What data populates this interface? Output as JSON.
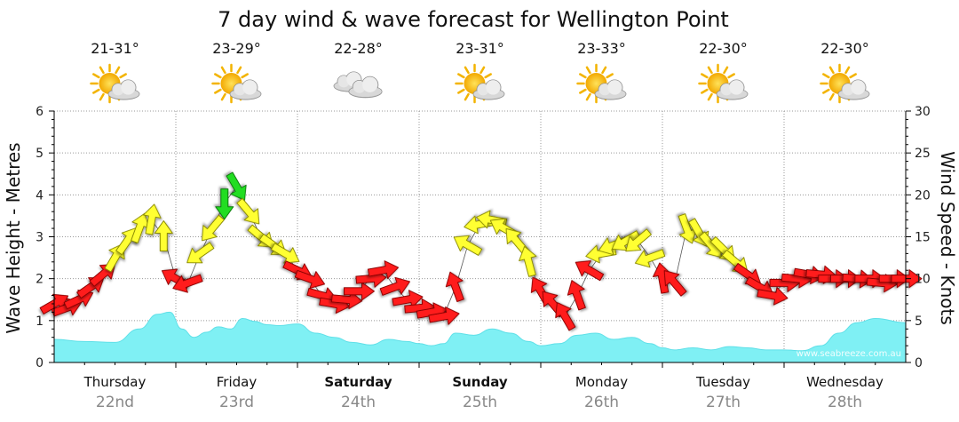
{
  "chart_data": {
    "type": "line",
    "title": "7 day wind & wave forecast for Wellington Point",
    "ylabel_left": "Wave Height - Metres",
    "ylabel_right": "Wind Speed - Knots",
    "ylim_left": [
      0,
      6
    ],
    "ylim_right": [
      0,
      30
    ],
    "yticks_left": [
      "0",
      "1",
      "2",
      "3",
      "4",
      "5",
      "6"
    ],
    "yticks_right": [
      "0",
      "5",
      "10",
      "15",
      "20",
      "25",
      "30"
    ],
    "watermark": "www.seabreeze.com.au",
    "grid": true,
    "days": [
      {
        "day": "Thursday",
        "date": "22nd",
        "temp": "21-31°",
        "weather": "partly-cloudy-icon",
        "bold": false
      },
      {
        "day": "Friday",
        "date": "23rd",
        "temp": "23-29°",
        "weather": "partly-cloudy-icon",
        "bold": false
      },
      {
        "day": "Saturday",
        "date": "24th",
        "temp": "22-28°",
        "weather": "cloudy-icon",
        "bold": true
      },
      {
        "day": "Sunday",
        "date": "25th",
        "temp": "23-31°",
        "weather": "partly-cloudy-icon",
        "bold": true
      },
      {
        "day": "Monday",
        "date": "26th",
        "temp": "23-33°",
        "weather": "partly-cloudy-icon",
        "bold": false
      },
      {
        "day": "Tuesday",
        "date": "27th",
        "temp": "22-30°",
        "weather": "partly-cloudy-icon",
        "bold": false
      },
      {
        "day": "Wednesday",
        "date": "28th",
        "temp": "22-30°",
        "weather": "partly-cloudy-icon",
        "bold": false
      }
    ],
    "wave_series": {
      "x_days": [
        0,
        0.25,
        0.5,
        0.7,
        0.85,
        0.95,
        1.05,
        1.15,
        1.25,
        1.35,
        1.45,
        1.55,
        1.65,
        1.75,
        1.85,
        2.0,
        2.15,
        2.3,
        2.45,
        2.6,
        2.75,
        2.9,
        3.0,
        3.1,
        3.2,
        3.3,
        3.45,
        3.6,
        3.75,
        3.9,
        4.0,
        4.15,
        4.3,
        4.45,
        4.6,
        4.75,
        4.9,
        5.0,
        5.1,
        5.25,
        5.4,
        5.55,
        5.7,
        5.85,
        6.0,
        6.15,
        6.3,
        6.45,
        6.6,
        6.75,
        7.0
      ],
      "values": [
        0.55,
        0.5,
        0.48,
        0.8,
        1.15,
        1.2,
        0.8,
        0.6,
        0.72,
        0.85,
        0.8,
        1.05,
        0.98,
        0.9,
        0.88,
        0.92,
        0.7,
        0.6,
        0.48,
        0.42,
        0.55,
        0.5,
        0.45,
        0.4,
        0.45,
        0.7,
        0.65,
        0.8,
        0.7,
        0.5,
        0.4,
        0.45,
        0.65,
        0.7,
        0.55,
        0.6,
        0.45,
        0.35,
        0.3,
        0.35,
        0.3,
        0.38,
        0.35,
        0.3,
        0.3,
        0.28,
        0.4,
        0.7,
        0.95,
        1.05,
        0.95
      ]
    },
    "wind_series": {
      "x_days": [
        0.0,
        0.1,
        0.2,
        0.3,
        0.4,
        0.5,
        0.6,
        0.7,
        0.8,
        0.9,
        1.0,
        1.1,
        1.2,
        1.3,
        1.4,
        1.5,
        1.6,
        1.7,
        1.8,
        1.9,
        2.0,
        2.1,
        2.2,
        2.3,
        2.4,
        2.5,
        2.6,
        2.7,
        2.8,
        2.9,
        3.0,
        3.1,
        3.2,
        3.3,
        3.4,
        3.5,
        3.6,
        3.7,
        3.8,
        3.9,
        4.0,
        4.1,
        4.2,
        4.3,
        4.4,
        4.5,
        4.6,
        4.7,
        4.8,
        4.9,
        5.0,
        5.1,
        5.2,
        5.3,
        5.4,
        5.5,
        5.6,
        5.7,
        5.8,
        5.9,
        6.0,
        6.1,
        6.2,
        6.3,
        6.4,
        6.5,
        6.6,
        6.7,
        6.8,
        6.9,
        7.0
      ],
      "knots": [
        7,
        6.5,
        7.5,
        9,
        10.5,
        12.5,
        14.5,
        16,
        17,
        15,
        10,
        9.5,
        13,
        16,
        19,
        21,
        18,
        15,
        14,
        13,
        11,
        10,
        8,
        7,
        7.5,
        8.5,
        10,
        11,
        9,
        7.5,
        6.5,
        6,
        5.5,
        9,
        14,
        16.5,
        17,
        16,
        14.5,
        12,
        8.5,
        7,
        5.5,
        8,
        11,
        13,
        14,
        14.5,
        14.5,
        12.5,
        10,
        9.5,
        16,
        15.5,
        14,
        13.5,
        12,
        10.5,
        9,
        8,
        9.5,
        10,
        10.5,
        10.5,
        10,
        10,
        10,
        10,
        9.5,
        10,
        10
      ],
      "arrow_deg": [
        60,
        70,
        65,
        55,
        50,
        30,
        35,
        20,
        10,
        0,
        300,
        250,
        235,
        220,
        180,
        150,
        140,
        130,
        125,
        120,
        115,
        110,
        105,
        100,
        95,
        90,
        85,
        80,
        70,
        80,
        85,
        80,
        80,
        340,
        300,
        260,
        280,
        300,
        320,
        345,
        330,
        320,
        330,
        340,
        300,
        260,
        250,
        240,
        230,
        250,
        350,
        320,
        160,
        150,
        140,
        135,
        130,
        125,
        120,
        100,
        90,
        95,
        100,
        95,
        90,
        90,
        95,
        90,
        95,
        90,
        90
      ]
    }
  }
}
